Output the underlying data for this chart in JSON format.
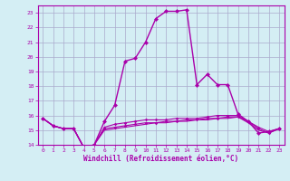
{
  "xlabel": "Windchill (Refroidissement éolien,°C)",
  "bg_color": "#d4eef4",
  "grid_color": "#aaaacc",
  "line_color": "#aa00aa",
  "x_hours": [
    0,
    1,
    2,
    3,
    4,
    5,
    6,
    7,
    8,
    9,
    10,
    11,
    12,
    13,
    14,
    15,
    16,
    17,
    18,
    19,
    20,
    21,
    22,
    23
  ],
  "series1": [
    15.8,
    15.3,
    15.1,
    15.1,
    13.8,
    14.0,
    15.6,
    16.7,
    19.7,
    19.9,
    21.0,
    22.6,
    23.1,
    23.1,
    23.2,
    18.1,
    18.8,
    18.1,
    18.1,
    16.1,
    15.6,
    14.8,
    14.9,
    15.1
  ],
  "series2": [
    15.8,
    15.3,
    15.1,
    15.1,
    13.8,
    14.0,
    15.2,
    15.4,
    15.5,
    15.6,
    15.7,
    15.7,
    15.7,
    15.8,
    15.8,
    15.8,
    15.9,
    16.0,
    16.0,
    16.0,
    15.6,
    15.2,
    14.9,
    15.1
  ],
  "series3": [
    15.8,
    15.3,
    15.1,
    15.1,
    13.8,
    14.0,
    15.1,
    15.2,
    15.3,
    15.4,
    15.5,
    15.5,
    15.6,
    15.6,
    15.7,
    15.7,
    15.8,
    15.8,
    15.9,
    15.9,
    15.6,
    15.1,
    14.8,
    15.1
  ],
  "series4": [
    15.8,
    15.3,
    15.1,
    15.1,
    13.8,
    14.0,
    15.0,
    15.1,
    15.2,
    15.3,
    15.4,
    15.5,
    15.5,
    15.6,
    15.6,
    15.7,
    15.7,
    15.8,
    15.8,
    15.9,
    15.5,
    15.0,
    14.8,
    15.1
  ],
  "ylim": [
    14,
    23.5
  ],
  "yticks": [
    14,
    15,
    16,
    17,
    18,
    19,
    20,
    21,
    22,
    23
  ],
  "xticks": [
    0,
    1,
    2,
    3,
    4,
    5,
    6,
    7,
    8,
    9,
    10,
    11,
    12,
    13,
    14,
    15,
    16,
    17,
    18,
    19,
    20,
    21,
    22,
    23
  ],
  "xlabel_fontsize": 5.5,
  "tick_fontsize": 4.5,
  "linewidth1": 1.0,
  "linewidth2": 0.8,
  "markersize1": 2.5,
  "markersize2": 1.8
}
